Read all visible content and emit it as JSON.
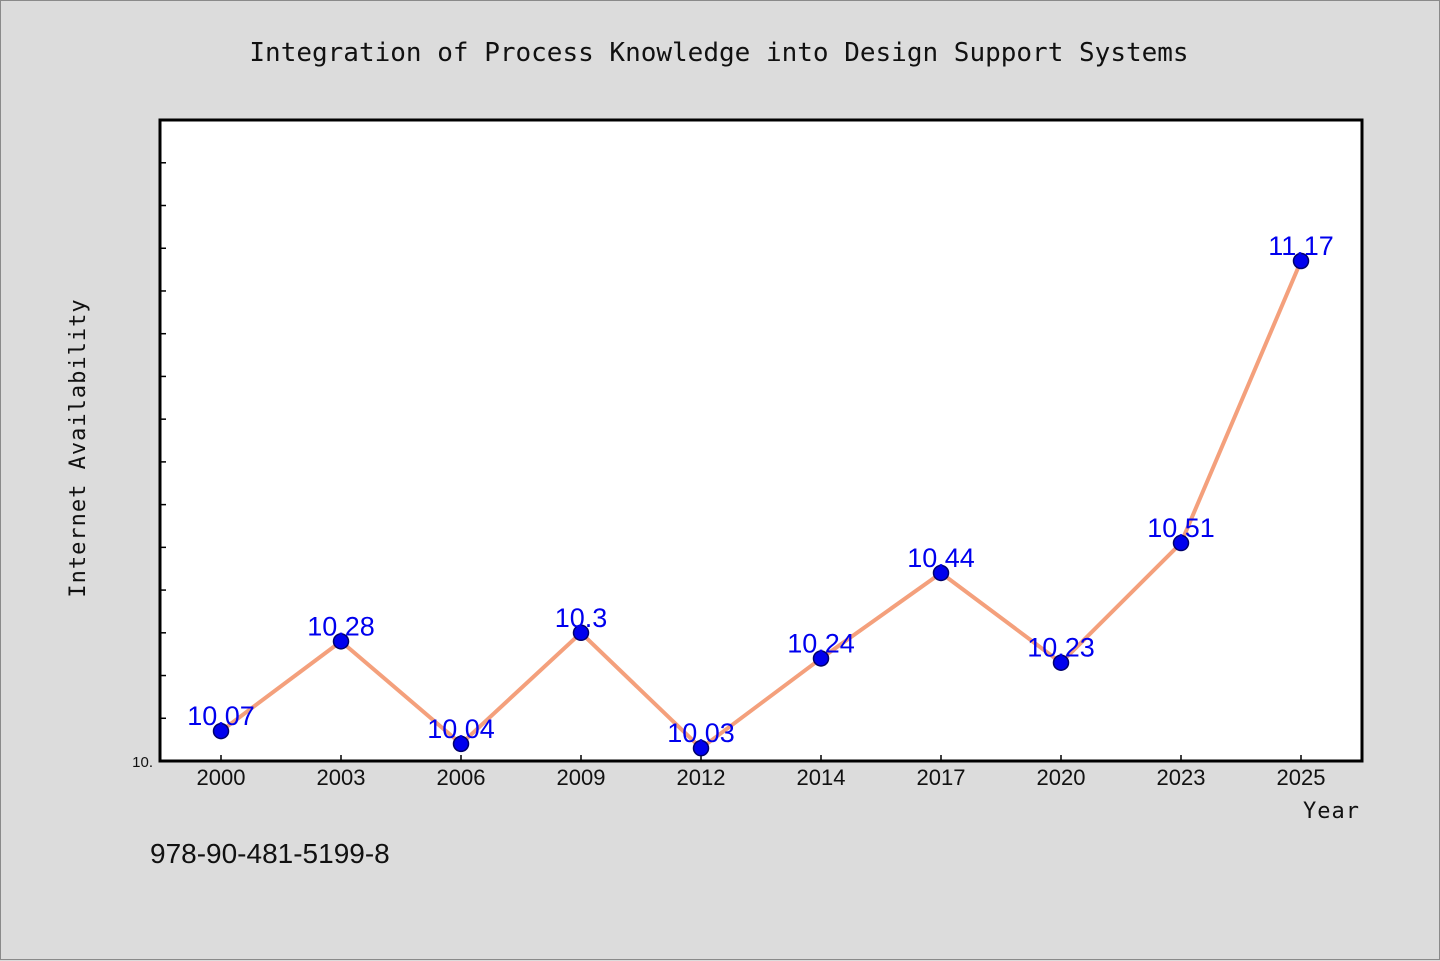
{
  "chart_data": {
    "type": "line",
    "title": "Integration of Process Knowledge into Design Support Systems",
    "xlabel": "Year",
    "ylabel": "Internet Availability",
    "categories": [
      "2000",
      "2003",
      "2006",
      "2009",
      "2012",
      "2014",
      "2017",
      "2020",
      "2023",
      "2025"
    ],
    "series": [
      {
        "values": [
          10.07,
          10.28,
          10.04,
          10.3,
          10.03,
          10.24,
          10.44,
          10.23,
          10.51,
          11.17
        ],
        "data_labels": [
          "10.07",
          "10.28",
          "10.04",
          "10.3",
          "10.03",
          "10.24",
          "10.44",
          "10.23",
          "10.51",
          "11.17"
        ]
      }
    ],
    "ylim": [
      10.0,
      11.5
    ],
    "y_tick_labels": [
      "10."
    ],
    "grid": false,
    "colors": {
      "line": "#f4a07c",
      "marker_fill": "#0000ee",
      "marker_stroke": "#00006a",
      "data_label": "#0000ee"
    }
  },
  "footer": {
    "isbn": "978-90-481-5199-8"
  }
}
